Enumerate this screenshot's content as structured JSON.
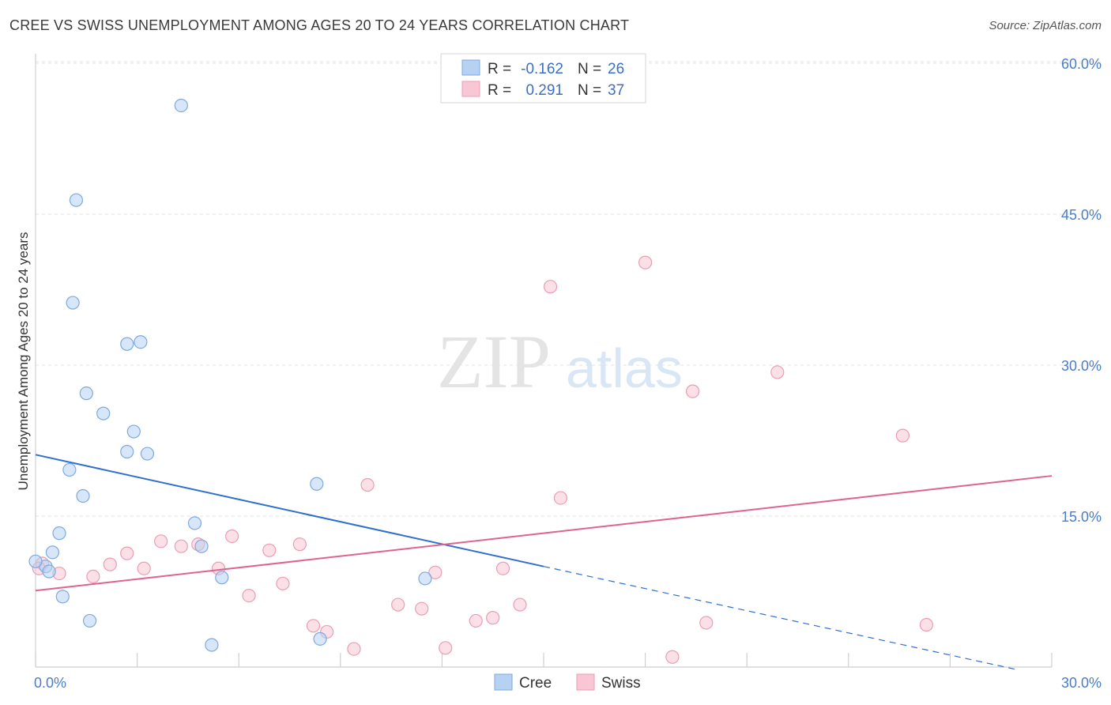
{
  "title": "CREE VS SWISS UNEMPLOYMENT AMONG AGES 20 TO 24 YEARS CORRELATION CHART",
  "source": "Source: ZipAtlas.com",
  "watermark": {
    "zip": "ZIP",
    "atlas": "atlas"
  },
  "legend": {
    "r_label": "R =",
    "n_label": "N =",
    "cree": {
      "r": "-0.162",
      "n": "26"
    },
    "swiss": {
      "r": "0.291",
      "n": "37"
    }
  },
  "colors": {
    "cree_fill": "#b7d1f3",
    "cree_stroke": "#7ea9e0",
    "cree_line": "#2f6fd0",
    "swiss_fill": "#f8c6d4",
    "swiss_stroke": "#eb9db3",
    "swiss_line": "#e0638e",
    "tick_label": "#4a7cc7"
  },
  "chart_data": {
    "type": "scatter",
    "title": "CREE VS SWISS UNEMPLOYMENT AMONG AGES 20 TO 24 YEARS CORRELATION CHART",
    "xlabel": "",
    "ylabel": "Unemployment Among Ages 20 to 24 years",
    "xlim": [
      0,
      30
    ],
    "ylim": [
      0,
      60
    ],
    "x_tick_labels": [
      "0.0%",
      "30.0%"
    ],
    "y_ticks": [
      15,
      30,
      45,
      60
    ],
    "y_tick_labels": [
      "15.0%",
      "30.0%",
      "45.0%",
      "60.0%"
    ],
    "series": [
      {
        "name": "Cree",
        "points": [
          [
            4.3,
            55.8
          ],
          [
            1.2,
            46.4
          ],
          [
            1.1,
            36.2
          ],
          [
            3.1,
            32.3
          ],
          [
            2.7,
            32.1
          ],
          [
            1.5,
            27.2
          ],
          [
            2.0,
            25.2
          ],
          [
            2.9,
            23.4
          ],
          [
            2.7,
            21.4
          ],
          [
            3.3,
            21.2
          ],
          [
            1.0,
            19.6
          ],
          [
            1.4,
            17.0
          ],
          [
            0.7,
            13.3
          ],
          [
            4.7,
            14.3
          ],
          [
            0.5,
            11.4
          ],
          [
            4.9,
            12.0
          ],
          [
            0.3,
            10.0
          ],
          [
            0.4,
            9.5
          ],
          [
            0.0,
            10.5
          ],
          [
            5.5,
            8.9
          ],
          [
            0.8,
            7.0
          ],
          [
            11.5,
            8.8
          ],
          [
            8.3,
            18.2
          ],
          [
            1.6,
            4.6
          ],
          [
            5.2,
            2.2
          ],
          [
            8.4,
            2.8
          ]
        ],
        "trend": {
          "x0": 0,
          "y0": 21.1,
          "x1": 15,
          "y1": 10.0,
          "dash_x1": 28.9,
          "dash_y1": -0.2
        }
      },
      {
        "name": "Swiss",
        "points": [
          [
            18.0,
            40.2
          ],
          [
            15.2,
            37.8
          ],
          [
            21.9,
            29.3
          ],
          [
            19.4,
            27.4
          ],
          [
            25.6,
            23.0
          ],
          [
            9.8,
            18.1
          ],
          [
            15.5,
            16.8
          ],
          [
            0.2,
            10.3
          ],
          [
            0.7,
            9.3
          ],
          [
            1.7,
            9.0
          ],
          [
            2.2,
            10.2
          ],
          [
            2.7,
            11.3
          ],
          [
            3.2,
            9.8
          ],
          [
            3.7,
            12.5
          ],
          [
            4.3,
            12.0
          ],
          [
            4.8,
            12.2
          ],
          [
            5.4,
            9.8
          ],
          [
            5.8,
            13.0
          ],
          [
            6.3,
            7.1
          ],
          [
            6.9,
            11.6
          ],
          [
            7.3,
            8.3
          ],
          [
            7.8,
            12.2
          ],
          [
            8.2,
            4.1
          ],
          [
            8.6,
            3.5
          ],
          [
            9.4,
            1.8
          ],
          [
            10.7,
            6.2
          ],
          [
            11.4,
            5.8
          ],
          [
            11.8,
            9.4
          ],
          [
            12.1,
            1.9
          ],
          [
            13.0,
            4.6
          ],
          [
            13.5,
            4.9
          ],
          [
            13.8,
            9.8
          ],
          [
            14.3,
            6.2
          ],
          [
            18.8,
            1.0
          ],
          [
            19.8,
            4.4
          ],
          [
            26.3,
            4.2
          ],
          [
            0.1,
            9.8
          ]
        ],
        "trend": {
          "x0": 0,
          "y0": 7.6,
          "x1": 30,
          "y1": 19.0
        }
      }
    ]
  }
}
